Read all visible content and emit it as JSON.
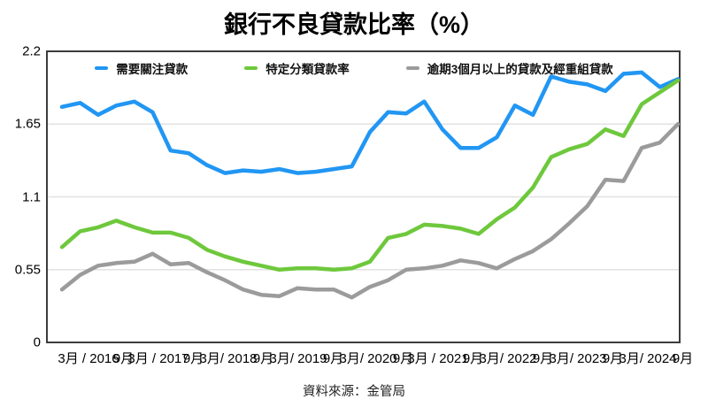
{
  "chart_data": {
    "type": "line",
    "title": "銀行不良貸款比率（%）",
    "source": "資料來源：金管局",
    "grid": "horizontal-only",
    "legend_position": "top",
    "ylim": [
      0,
      2.2
    ],
    "yticks": [
      0,
      0.55,
      1.1,
      1.65,
      2.2
    ],
    "ytick_labels": [
      "0",
      "0.55",
      "1.1",
      "1.65",
      "2.2"
    ],
    "x_labels": [
      "3月 / 2016",
      "9月",
      "3月 / 2017",
      "9月",
      "3月/ 2018",
      "9月",
      "3月/ 2019",
      "9月",
      "3月/ 2020",
      "9月",
      "3月 / 2021",
      "9月",
      "3月/ 2022",
      "9月",
      "3月/ 2023",
      "9月",
      "3月/ 2024",
      "9月"
    ],
    "points_per_label": 2,
    "x_period": "quarterly, 3月/2016 至 9月/2024",
    "grid_color": "#e2e2e2",
    "border_color": "#3c3c3c",
    "series": [
      {
        "name": "需要關注貸款",
        "color": "#2196f3",
        "values": [
          1.78,
          1.81,
          1.72,
          1.79,
          1.82,
          1.74,
          1.45,
          1.43,
          1.34,
          1.28,
          1.3,
          1.29,
          1.31,
          1.28,
          1.29,
          1.31,
          1.33,
          1.59,
          1.74,
          1.73,
          1.82,
          1.61,
          1.47,
          1.47,
          1.55,
          1.79,
          1.72,
          2.01,
          1.97,
          1.95,
          1.9,
          2.03,
          2.04,
          1.93,
          1.99
        ]
      },
      {
        "name": "特定分類貸款率",
        "color": "#6ec83c",
        "values": [
          0.72,
          0.84,
          0.87,
          0.92,
          0.87,
          0.83,
          0.83,
          0.79,
          0.7,
          0.65,
          0.61,
          0.58,
          0.55,
          0.56,
          0.56,
          0.55,
          0.56,
          0.61,
          0.79,
          0.82,
          0.89,
          0.88,
          0.86,
          0.82,
          0.93,
          1.02,
          1.17,
          1.4,
          1.46,
          1.5,
          1.61,
          1.56,
          1.8,
          1.89,
          1.98
        ]
      },
      {
        "name": "逾期3個月以上的貸款及經重組貸款",
        "color": "#9b9b9b",
        "values": [
          0.4,
          0.51,
          0.58,
          0.6,
          0.61,
          0.67,
          0.59,
          0.6,
          0.53,
          0.47,
          0.4,
          0.36,
          0.35,
          0.41,
          0.4,
          0.4,
          0.34,
          0.42,
          0.47,
          0.55,
          0.56,
          0.58,
          0.62,
          0.6,
          0.56,
          0.63,
          0.69,
          0.78,
          0.9,
          1.03,
          1.23,
          1.22,
          1.47,
          1.51,
          1.65
        ]
      }
    ]
  }
}
